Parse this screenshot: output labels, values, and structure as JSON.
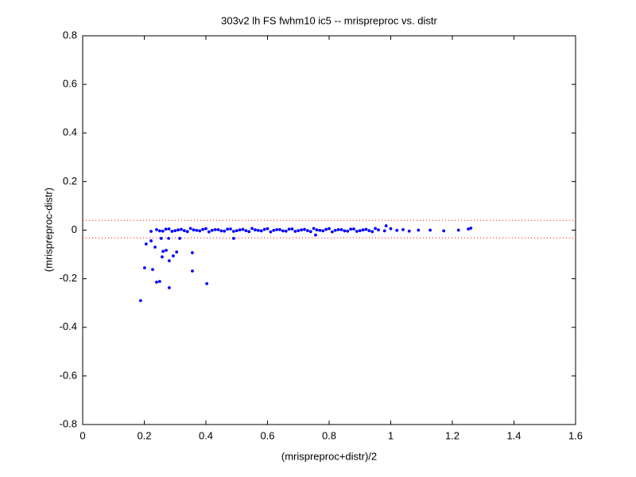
{
  "chart_data": {
    "type": "scatter",
    "title": "303v2 lh FS fwhm10 ic5 -- mrispreproc vs. distr",
    "xlabel": "(mrispreproc+distr)/2",
    "ylabel": "(mrispreproc-distr)",
    "color": "#0000ff",
    "x": [
      0.24,
      0.26,
      0.28,
      0.3,
      0.32,
      0.34,
      0.36,
      0.38,
      0.4,
      0.42,
      0.44,
      0.46,
      0.48,
      0.5,
      0.52,
      0.54,
      0.56,
      0.58,
      0.6,
      0.62,
      0.64,
      0.66,
      0.68,
      0.7,
      0.72,
      0.74,
      0.76,
      0.78,
      0.8,
      0.82,
      0.84,
      0.86,
      0.88,
      0.9,
      0.92,
      0.94,
      0.96,
      0.98,
      1.0,
      1.02,
      1.04,
      1.06,
      0.25,
      0.27,
      0.29,
      0.31,
      0.33,
      0.35,
      0.37,
      0.39,
      0.41,
      0.43,
      0.45,
      0.47,
      0.49,
      0.51,
      0.53,
      0.55,
      0.57,
      0.59,
      0.61,
      0.63,
      0.65,
      0.67,
      0.69,
      0.71,
      0.73,
      0.75,
      0.77,
      0.79,
      0.81,
      0.83,
      0.85,
      0.87,
      0.89,
      0.91,
      0.93,
      0.95,
      0.188,
      0.201,
      0.206,
      0.222,
      0.227,
      0.235,
      0.24,
      0.25,
      0.255,
      0.258,
      0.261,
      0.271,
      0.279,
      0.281,
      0.281,
      0.294,
      0.305,
      0.315,
      0.356,
      0.356,
      0.403,
      0.49,
      0.222,
      1.09,
      1.128,
      1.172,
      1.22,
      1.252,
      1.26,
      0.985,
      0.756
    ],
    "y": [
      0.002,
      -0.004,
      0.005,
      -0.002,
      0.003,
      -0.006,
      0.001,
      -0.003,
      0.006,
      -0.001,
      0.002,
      -0.004,
      0.005,
      -0.002,
      0.003,
      -0.006,
      0.001,
      -0.003,
      0.006,
      -0.001,
      0.002,
      -0.004,
      0.005,
      -0.002,
      0.003,
      -0.006,
      0.001,
      -0.003,
      0.006,
      -0.001,
      0.002,
      -0.004,
      0.005,
      -0.002,
      0.003,
      -0.006,
      0.001,
      -0.003,
      0.006,
      -0.001,
      0.002,
      -0.004,
      -0.003,
      0.004,
      -0.005,
      0.001,
      -0.002,
      0.007,
      -0.001,
      0.003,
      -0.007,
      0.002,
      -0.003,
      0.004,
      -0.005,
      0.001,
      -0.002,
      0.007,
      -0.001,
      0.003,
      -0.007,
      0.002,
      -0.003,
      0.004,
      -0.005,
      0.001,
      -0.002,
      0.007,
      -0.001,
      0.003,
      -0.007,
      0.002,
      -0.003,
      0.004,
      -0.005,
      0.001,
      -0.002,
      0.007,
      -0.29,
      -0.155,
      -0.057,
      -0.044,
      -0.162,
      -0.07,
      -0.214,
      -0.211,
      -0.034,
      -0.11,
      -0.087,
      -0.083,
      -0.034,
      -0.237,
      -0.126,
      -0.106,
      -0.09,
      -0.034,
      -0.093,
      -0.168,
      -0.22,
      -0.034,
      -0.005,
      0.0,
      0.0,
      -0.003,
      0.0,
      0.005,
      0.008,
      0.018,
      -0.02
    ],
    "reference_lines": [
      {
        "value": 0.04,
        "color": "#ff0000"
      },
      {
        "value": -0.032,
        "color": "#ff0000"
      }
    ],
    "xlim": [
      0,
      1.6
    ],
    "xticks": [
      0,
      0.2,
      0.4,
      0.6,
      0.8,
      1,
      1.2,
      1.4,
      1.6
    ],
    "ylim": [
      -0.8,
      0.8
    ],
    "yticks": [
      -0.8,
      -0.6,
      -0.4,
      -0.2,
      0,
      0.2,
      0.4,
      0.6,
      0.8
    ],
    "grid": false
  }
}
